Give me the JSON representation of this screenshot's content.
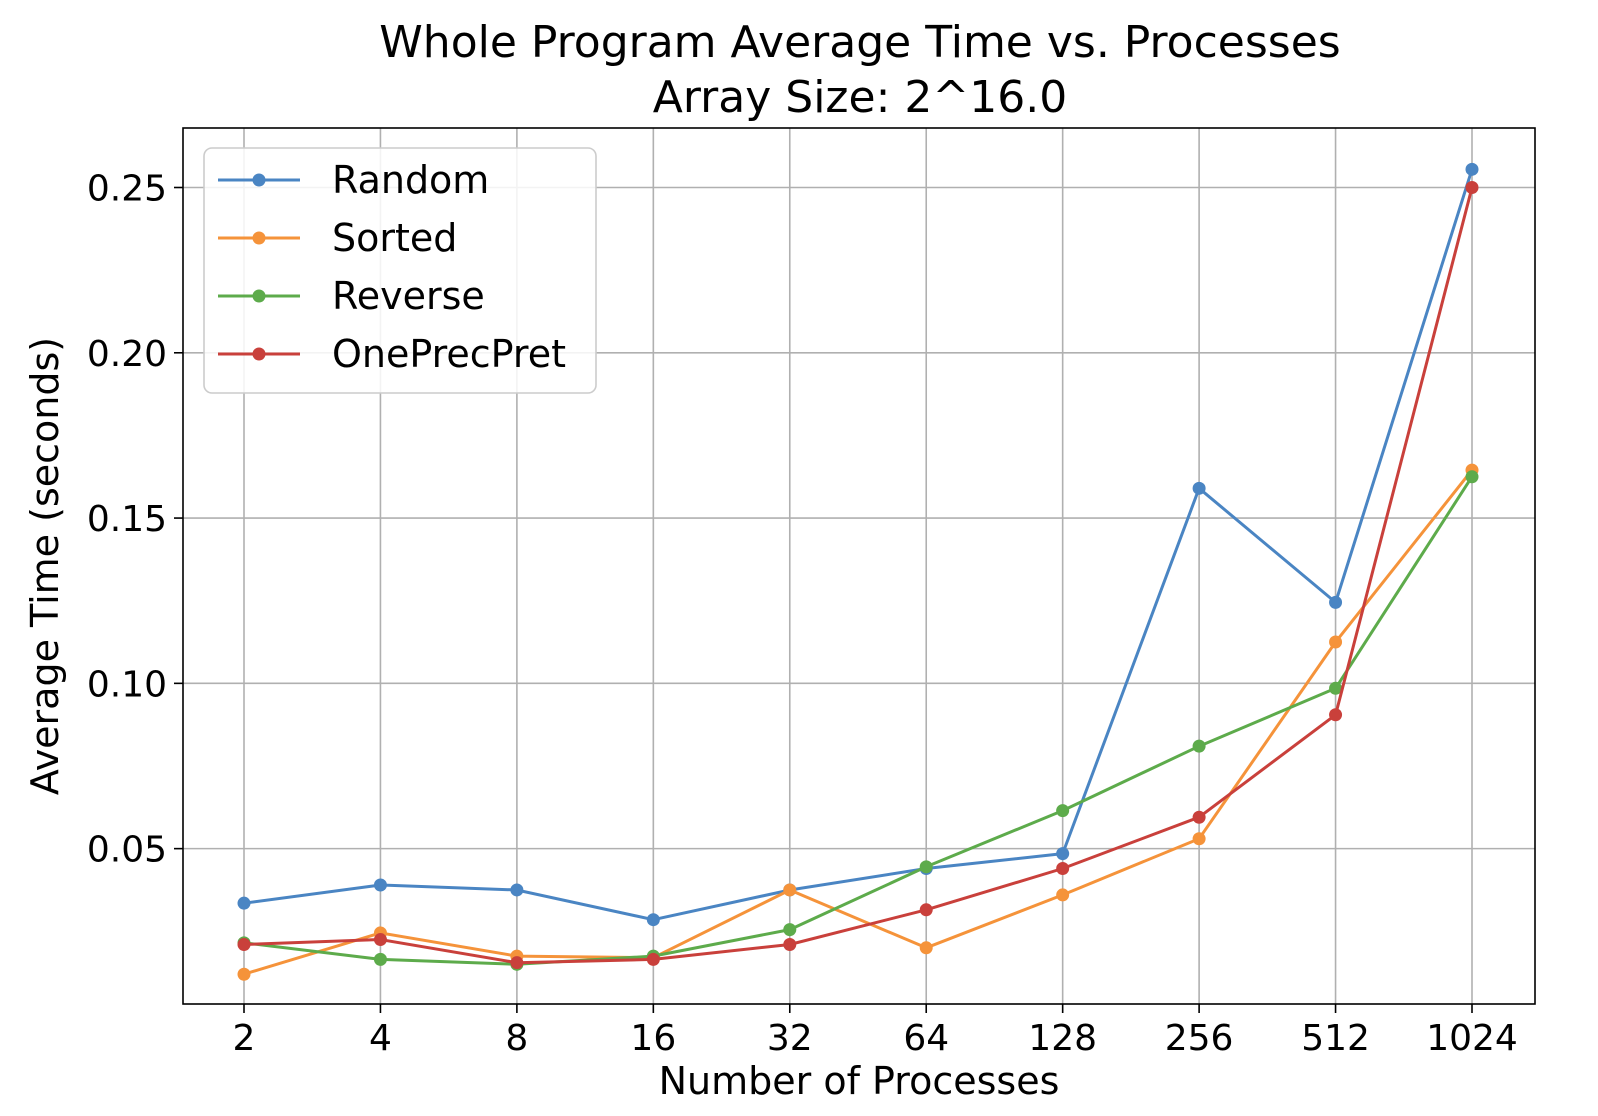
{
  "chart_data": {
    "type": "line",
    "title": "Whole Program Average Time vs. Processes",
    "subtitle": "Array Size: 2^16.0",
    "xlabel": "Number of Processes",
    "ylabel": "Average Time (seconds)",
    "categories": [
      "2",
      "4",
      "8",
      "16",
      "32",
      "64",
      "128",
      "256",
      "512",
      "1024"
    ],
    "ylim": [
      0.003,
      0.268
    ],
    "yticks": [
      0.05,
      0.1,
      0.15,
      0.2,
      0.25
    ],
    "ytick_labels": [
      "0.05",
      "0.10",
      "0.15",
      "0.20",
      "0.25"
    ],
    "grid": true,
    "legend_position": "upper-left",
    "series": [
      {
        "name": "Random",
        "color": "#4a85c3",
        "values": [
          0.0335,
          0.039,
          0.0375,
          0.0285,
          0.0375,
          0.044,
          0.0485,
          0.159,
          0.1245,
          0.2555
        ]
      },
      {
        "name": "Sorted",
        "color": "#f5933a",
        "values": [
          0.012,
          0.0245,
          0.0175,
          0.017,
          0.0375,
          0.02,
          0.036,
          0.053,
          0.1125,
          0.1645
        ]
      },
      {
        "name": "Reverse",
        "color": "#5dab4b",
        "values": [
          0.0215,
          0.0165,
          0.015,
          0.0175,
          0.0255,
          0.0445,
          0.0615,
          0.081,
          0.0985,
          0.1625
        ]
      },
      {
        "name": "OnePrecPret",
        "color": "#c9403b",
        "values": [
          0.021,
          0.0225,
          0.0155,
          0.0165,
          0.021,
          0.0315,
          0.044,
          0.0595,
          0.0905,
          0.25
        ]
      }
    ]
  }
}
